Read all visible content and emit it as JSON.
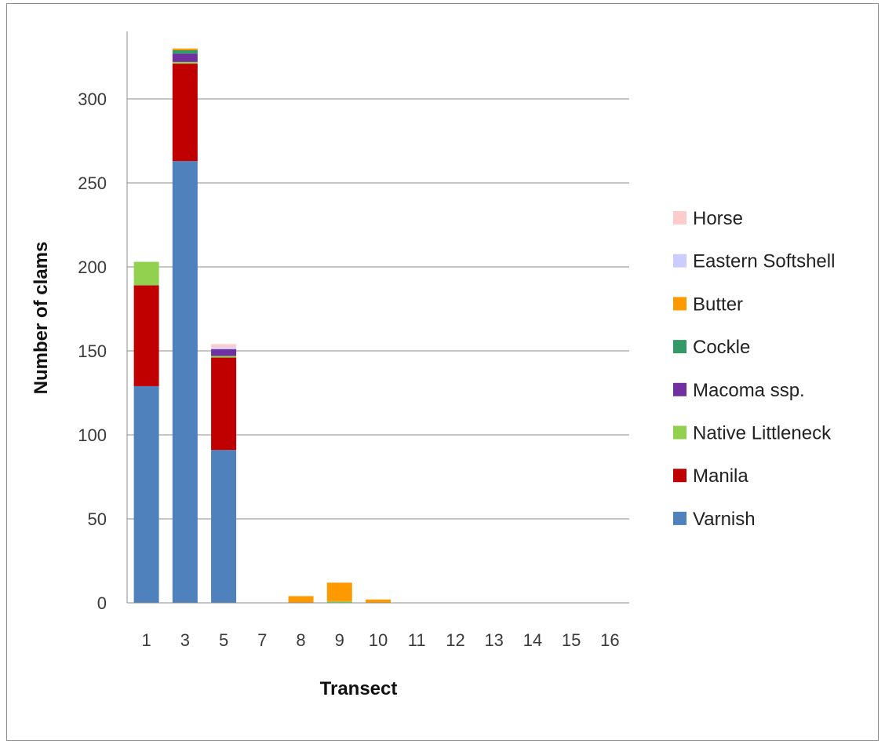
{
  "chart_data": {
    "type": "bar",
    "stacked": true,
    "title": "",
    "xlabel": "Transect",
    "ylabel": "Number of clams",
    "ylim": [
      0,
      330
    ],
    "yticks": [
      0,
      50,
      100,
      150,
      200,
      250,
      300
    ],
    "grid": true,
    "legend_position": "right",
    "categories": [
      "1",
      "3",
      "5",
      "7",
      "8",
      "9",
      "10",
      "11",
      "12",
      "13",
      "14",
      "15",
      "16"
    ],
    "series": [
      {
        "name": "Varnish",
        "color": "#4F81BD",
        "values": [
          129,
          263,
          91,
          0,
          0,
          0,
          0,
          0,
          0,
          0,
          0,
          0,
          0
        ]
      },
      {
        "name": "Manila",
        "color": "#C00000",
        "values": [
          60,
          58,
          55,
          0,
          0,
          0,
          0,
          0,
          0,
          0,
          0,
          0,
          0
        ]
      },
      {
        "name": "Native Littleneck",
        "color": "#92D050",
        "values": [
          14,
          1,
          1,
          0,
          0,
          1,
          0,
          0,
          0,
          0,
          0,
          0,
          0
        ]
      },
      {
        "name": "Macoma ssp.",
        "color": "#7030A0",
        "values": [
          0,
          5,
          4,
          0,
          0,
          0,
          0,
          0,
          0,
          0,
          0,
          0,
          0
        ]
      },
      {
        "name": "Cockle",
        "color": "#339966",
        "values": [
          0,
          2,
          0,
          0,
          0,
          0,
          0,
          0,
          0,
          0,
          0,
          0,
          0
        ]
      },
      {
        "name": "Butter",
        "color": "#FF9900",
        "values": [
          0,
          1,
          0,
          0,
          4,
          11,
          2,
          0,
          0,
          0,
          0,
          0,
          0
        ]
      },
      {
        "name": "Eastern Softshell",
        "color": "#CCCCFF",
        "values": [
          0,
          0,
          1,
          0,
          0,
          0,
          0,
          0,
          0,
          0,
          0,
          0,
          0
        ]
      },
      {
        "name": "Horse",
        "color": "#FFCCCC",
        "values": [
          0,
          0,
          2,
          0,
          0,
          0,
          0,
          0,
          0,
          0,
          0,
          0,
          0
        ]
      }
    ]
  }
}
